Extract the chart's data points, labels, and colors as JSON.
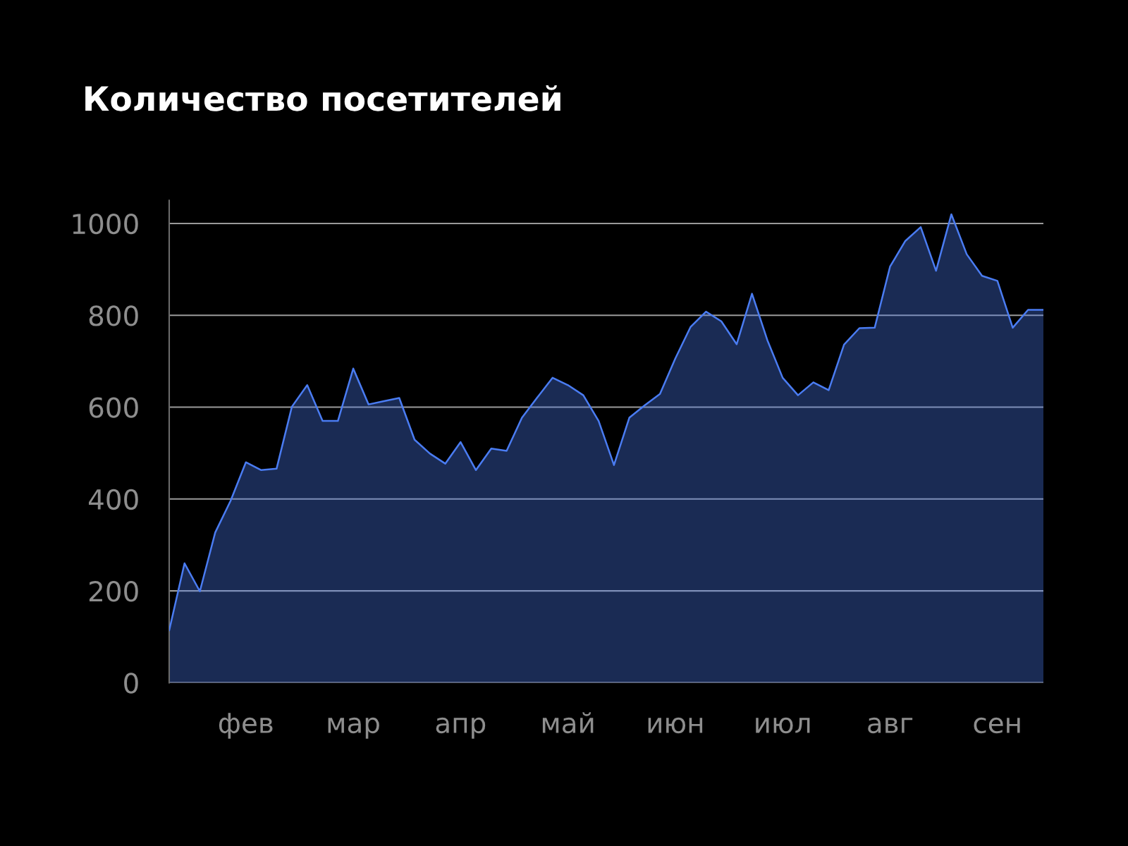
{
  "chart_data": {
    "type": "area",
    "title": "Количество посетителей",
    "categories": [
      null,
      null,
      null,
      null,
      null,
      "фев",
      null,
      null,
      null,
      null,
      null,
      null,
      "мар",
      null,
      null,
      null,
      null,
      null,
      null,
      "апр",
      null,
      null,
      null,
      null,
      null,
      null,
      "май",
      null,
      null,
      null,
      null,
      null,
      null,
      "июн",
      null,
      null,
      null,
      null,
      null,
      null,
      "июл",
      null,
      null,
      null,
      null,
      null,
      null,
      "авг",
      null,
      null,
      null,
      null,
      null,
      null,
      "сен",
      null,
      null,
      null
    ],
    "series": [
      {
        "color": "#4a7cf2",
        "values": [
          114,
          260,
          199,
          327,
          396,
          480,
          463,
          466,
          601,
          648,
          570,
          570,
          684,
          606,
          613,
          620,
          529,
          499,
          477,
          524,
          463,
          510,
          505,
          577,
          621,
          664,
          648,
          626,
          570,
          474,
          577,
          604,
          629,
          706,
          775,
          808,
          787,
          737,
          847,
          746,
          664,
          626,
          654,
          637,
          736,
          772,
          773,
          906,
          962,
          992,
          897,
          1020,
          933,
          886,
          875,
          773,
          812,
          812
        ]
      }
    ],
    "ylim": [
      0,
      1050
    ],
    "yticks": [
      0,
      200,
      400,
      600,
      800,
      1000
    ],
    "grid": "y",
    "legend": false
  }
}
